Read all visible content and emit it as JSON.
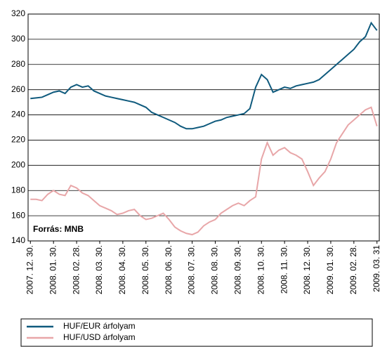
{
  "chart_data": {
    "type": "line",
    "annotation": "Forrás: MNB",
    "x": [
      0,
      0.25,
      0.5,
      0.75,
      1,
      1.25,
      1.5,
      1.75,
      2,
      2.25,
      2.5,
      2.75,
      3,
      3.25,
      3.5,
      3.75,
      4,
      4.25,
      4.5,
      4.75,
      5,
      5.25,
      5.5,
      5.75,
      6,
      6.25,
      6.5,
      6.75,
      7,
      7.25,
      7.5,
      7.75,
      8,
      8.25,
      8.5,
      8.75,
      9,
      9.25,
      9.5,
      9.75,
      10,
      10.25,
      10.5,
      10.75,
      11,
      11.25,
      11.5,
      11.75,
      12,
      12.25,
      12.5,
      12.75,
      13,
      13.25,
      13.5,
      13.75,
      14,
      14.25,
      14.5,
      14.75,
      15
    ],
    "series": [
      {
        "name": "HUF/EUR árfolyam",
        "color": "#0f5a7d",
        "values": [
          253,
          253.5,
          254,
          256,
          258,
          259,
          257,
          262,
          264,
          262,
          263,
          259,
          257,
          255,
          254,
          253,
          252,
          251,
          250,
          248,
          246,
          242,
          240,
          238,
          236,
          234,
          231,
          229,
          229,
          230,
          231,
          233,
          235,
          236,
          238,
          239,
          240,
          241,
          245,
          262,
          272,
          268,
          258,
          260,
          262,
          261,
          263,
          264,
          265,
          266,
          268,
          272,
          276,
          280,
          284,
          288,
          292,
          298,
          302,
          313,
          307
        ]
      },
      {
        "name": "HUF/USD árfolyam",
        "color": "#e8a6a8",
        "values": [
          173,
          173,
          172,
          177,
          180,
          177,
          176,
          184,
          182,
          178,
          176,
          172,
          168,
          166,
          164,
          161,
          162,
          164,
          165,
          160,
          157,
          158,
          160,
          162,
          157,
          151,
          148,
          146,
          145,
          147,
          152,
          155,
          157,
          162,
          165,
          168,
          170,
          168,
          172,
          175,
          205,
          218,
          208,
          212,
          214,
          210,
          208,
          205,
          195,
          184,
          190,
          195,
          205,
          218,
          225,
          232,
          236,
          240,
          244,
          246,
          231
        ]
      }
    ],
    "xlim": [
      -0.1,
      15.1
    ],
    "xticks": [
      {
        "value": 0,
        "label": "2007. 12. 30."
      },
      {
        "value": 1,
        "label": "2008. 01. 30."
      },
      {
        "value": 2,
        "label": "2008. 02. 28."
      },
      {
        "value": 3,
        "label": "2008. 03. 30."
      },
      {
        "value": 4,
        "label": "2008. 04. 30."
      },
      {
        "value": 5,
        "label": "2008. 05. 30."
      },
      {
        "value": 6,
        "label": "2008. 06. 30."
      },
      {
        "value": 7,
        "label": "2008. 07. 30."
      },
      {
        "value": 8,
        "label": "2008. 08. 30."
      },
      {
        "value": 9,
        "label": "2008. 09. 30."
      },
      {
        "value": 10,
        "label": "2008. 10. 30."
      },
      {
        "value": 11,
        "label": "2008. 11. 30."
      },
      {
        "value": 12,
        "label": "2008. 12. 30."
      },
      {
        "value": 13,
        "label": "2009. 01. 30."
      },
      {
        "value": 14,
        "label": "2009. 02. 28."
      },
      {
        "value": 15,
        "label": "2009. 03. 31"
      }
    ],
    "ylim": [
      140,
      320
    ],
    "yticks": [
      140,
      160,
      180,
      200,
      220,
      240,
      260,
      280,
      300,
      320
    ],
    "grid": true
  }
}
